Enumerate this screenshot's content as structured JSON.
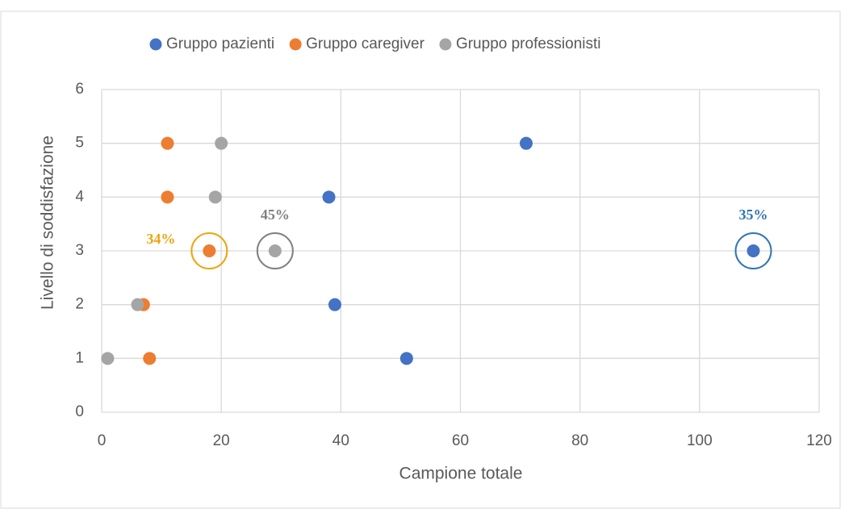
{
  "chart_data": {
    "type": "scatter",
    "xlabel": "Campione totale",
    "ylabel": "Livello di soddisfazione",
    "xlim": [
      0,
      120
    ],
    "xticks": [
      0,
      20,
      40,
      60,
      80,
      100,
      120
    ],
    "ylim": [
      0,
      6
    ],
    "yticks": [
      0,
      1,
      2,
      3,
      4,
      5,
      6
    ],
    "grid": true,
    "legend": "top",
    "series": [
      {
        "name": "Gruppo pazienti",
        "color": "#4472c4",
        "x": [
          71,
          38,
          39,
          51,
          109
        ],
        "values": [
          5,
          4,
          2,
          1,
          3
        ]
      },
      {
        "name": "Gruppo caregiver",
        "color": "#ed7d31",
        "x": [
          11,
          11,
          18,
          7,
          8
        ],
        "values": [
          5,
          4,
          3,
          2,
          1
        ]
      },
      {
        "name": "Gruppo professionisti",
        "color": "#a5a5a5",
        "x": [
          20,
          19,
          29,
          6,
          1
        ],
        "values": [
          5,
          4,
          3,
          2,
          1
        ]
      }
    ],
    "annotations": [
      {
        "text": "34%",
        "x": 18,
        "y": 3,
        "color": "#f0a30a",
        "position": "left"
      },
      {
        "text": "45%",
        "x": 29,
        "y": 3,
        "color": "#808080",
        "position": "top"
      },
      {
        "text": "35%",
        "x": 109,
        "y": 3,
        "color": "#2e75b6",
        "position": "top"
      }
    ]
  }
}
